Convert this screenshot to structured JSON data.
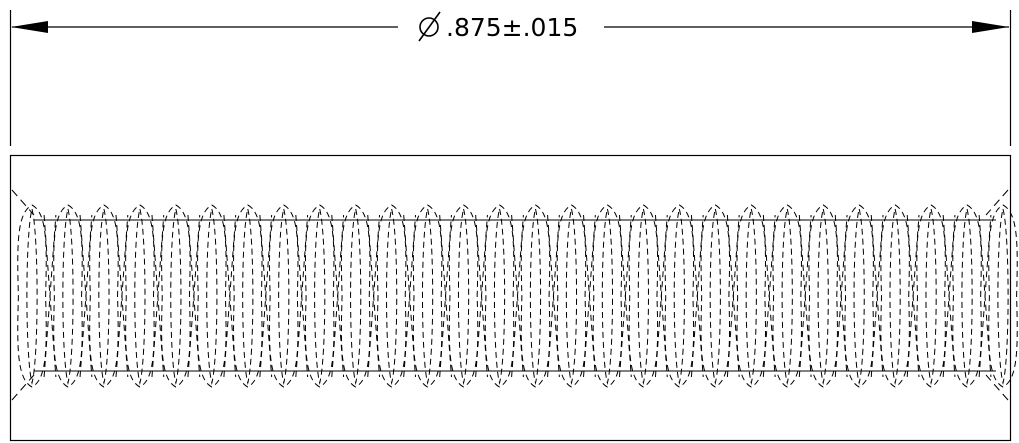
{
  "dimension": {
    "symbol": "∅",
    "value": ".875±.015"
  },
  "colors": {
    "line": "#000000",
    "background": "#ffffff"
  },
  "thread": {
    "pitch_count": 27,
    "style": "hidden-dashed"
  }
}
